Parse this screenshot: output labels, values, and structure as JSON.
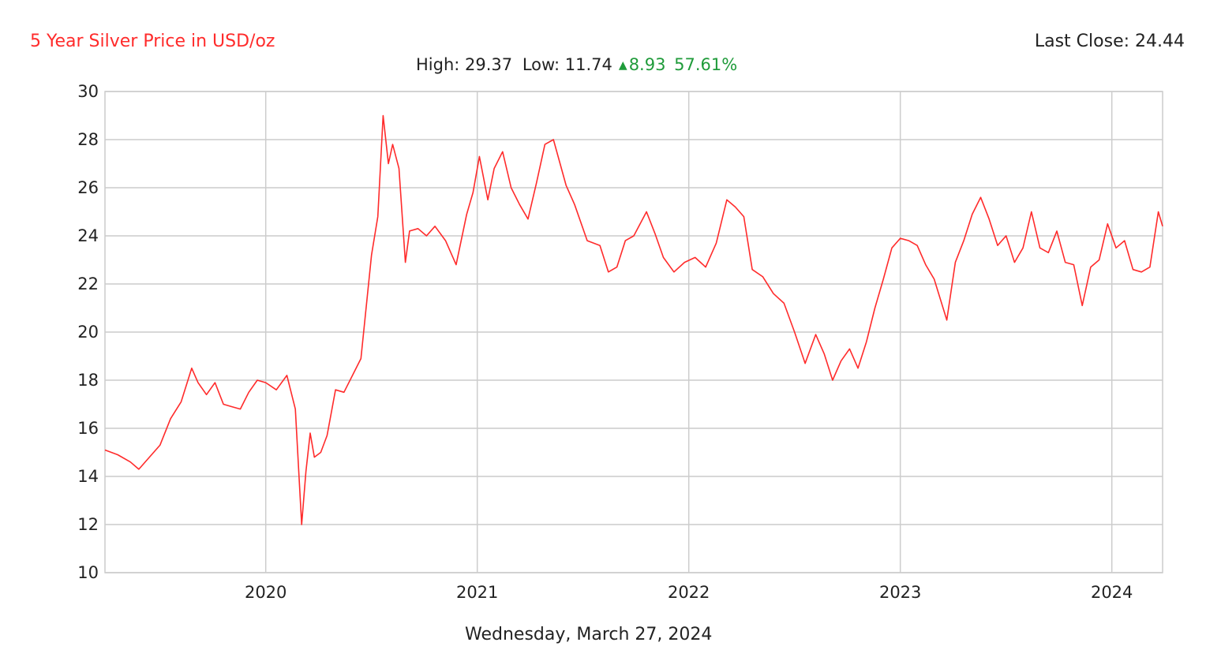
{
  "header": {
    "title": "5 Year Silver Price in USD/oz",
    "last_close": "Last Close: 24.44",
    "high": "High: 29.37",
    "low": "Low: 11.74",
    "change": "8.93",
    "change_pct": "57.61%"
  },
  "footer": {
    "date": "Wednesday, March 27, 2024"
  },
  "colors": {
    "line": "#ff2b2b",
    "title": "#ff2b2b",
    "up": "#1f9b3a",
    "grid": "#cccccc"
  },
  "chart_data": {
    "type": "line",
    "title": "5 Year Silver Price in USD/oz",
    "xlabel": "Wednesday, March 27, 2024",
    "ylabel": "",
    "xlim": [
      2019.24,
      2024.24
    ],
    "ylim": [
      10,
      30
    ],
    "x_ticks": [
      2020,
      2021,
      2022,
      2023,
      2024
    ],
    "y_ticks": [
      10,
      12,
      14,
      16,
      18,
      20,
      22,
      24,
      26,
      28,
      30
    ],
    "grid": true,
    "series": [
      {
        "x": [
          2019.24,
          2019.3,
          2019.36,
          2019.4,
          2019.45,
          2019.5,
          2019.55,
          2019.6,
          2019.65,
          2019.68,
          2019.72,
          2019.76,
          2019.8,
          2019.84,
          2019.88,
          2019.92,
          2019.96,
          2020.0,
          2020.05,
          2020.1,
          2020.14,
          2020.17,
          2020.19,
          2020.21,
          2020.23,
          2020.26,
          2020.29,
          2020.33,
          2020.37,
          2020.41,
          2020.45,
          2020.5,
          2020.53,
          2020.555,
          2020.58,
          2020.6,
          2020.63,
          2020.66,
          2020.68,
          2020.72,
          2020.76,
          2020.8,
          2020.85,
          2020.9,
          2020.95,
          2020.98,
          2021.01,
          2021.05,
          2021.08,
          2021.12,
          2021.16,
          2021.2,
          2021.24,
          2021.28,
          2021.32,
          2021.36,
          2021.42,
          2021.46,
          2021.52,
          2021.58,
          2021.62,
          2021.66,
          2021.7,
          2021.74,
          2021.8,
          2021.84,
          2021.88,
          2021.93,
          2021.98,
          2022.03,
          2022.08,
          2022.13,
          2022.18,
          2022.22,
          2022.26,
          2022.3,
          2022.35,
          2022.4,
          2022.45,
          2022.5,
          2022.55,
          2022.6,
          2022.64,
          2022.68,
          2022.72,
          2022.76,
          2022.8,
          2022.84,
          2022.88,
          2022.92,
          2022.96,
          2023.0,
          2023.04,
          2023.08,
          2023.12,
          2023.16,
          2023.22,
          2023.26,
          2023.3,
          2023.34,
          2023.38,
          2023.42,
          2023.46,
          2023.5,
          2023.54,
          2023.58,
          2023.62,
          2023.66,
          2023.7,
          2023.74,
          2023.78,
          2023.82,
          2023.86,
          2023.9,
          2023.94,
          2023.98,
          2024.02,
          2024.06,
          2024.1,
          2024.14,
          2024.18,
          2024.22,
          2024.24
        ],
        "y": [
          15.1,
          14.9,
          14.6,
          14.3,
          14.8,
          15.3,
          16.4,
          17.1,
          18.5,
          17.9,
          17.4,
          17.9,
          17.0,
          16.9,
          16.8,
          17.5,
          18.0,
          17.9,
          17.6,
          18.2,
          16.8,
          12.0,
          14.2,
          15.8,
          14.8,
          15.0,
          15.7,
          17.6,
          17.5,
          18.2,
          18.9,
          23.2,
          24.8,
          29.0,
          27.0,
          27.8,
          26.8,
          22.9,
          24.2,
          24.3,
          24.0,
          24.4,
          23.8,
          22.8,
          24.9,
          25.8,
          27.3,
          25.5,
          26.8,
          27.5,
          26.0,
          25.3,
          24.7,
          26.2,
          27.8,
          28.0,
          26.1,
          25.3,
          23.8,
          23.6,
          22.5,
          22.7,
          23.8,
          24.0,
          25.0,
          24.1,
          23.1,
          22.5,
          22.9,
          23.1,
          22.7,
          23.7,
          25.5,
          25.2,
          24.8,
          22.6,
          22.3,
          21.6,
          21.2,
          20.0,
          18.7,
          19.9,
          19.1,
          18.0,
          18.8,
          19.3,
          18.5,
          19.6,
          21.0,
          22.2,
          23.5,
          23.9,
          23.8,
          23.6,
          22.8,
          22.2,
          20.5,
          22.9,
          23.8,
          24.9,
          25.6,
          24.7,
          23.6,
          24.0,
          22.9,
          23.5,
          25.0,
          23.5,
          23.3,
          24.2,
          22.9,
          22.8,
          21.1,
          22.7,
          23.0,
          24.5,
          23.5,
          23.8,
          22.6,
          22.5,
          22.7,
          25.0,
          24.4
        ]
      }
    ]
  }
}
